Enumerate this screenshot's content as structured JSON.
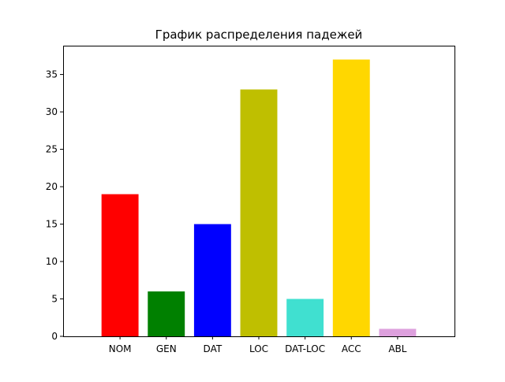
{
  "chart_data": {
    "type": "bar",
    "title": "График распределения падежей",
    "xlabel": "",
    "ylabel": "",
    "categories": [
      "NOM",
      "GEN",
      "DAT",
      "LOC",
      "DAT-LOC",
      "ACC",
      "ABL"
    ],
    "values": [
      19,
      6,
      15,
      33,
      5,
      37,
      1
    ],
    "colors": [
      "#ff0000",
      "#008000",
      "#0000ff",
      "#bfbf00",
      "#40e0d0",
      "#ffd700",
      "#dda0dd"
    ],
    "ylim": [
      0,
      38.85
    ],
    "yticks": [
      0,
      5,
      10,
      15,
      20,
      25,
      30,
      35
    ],
    "grid": false,
    "legend": "none"
  }
}
